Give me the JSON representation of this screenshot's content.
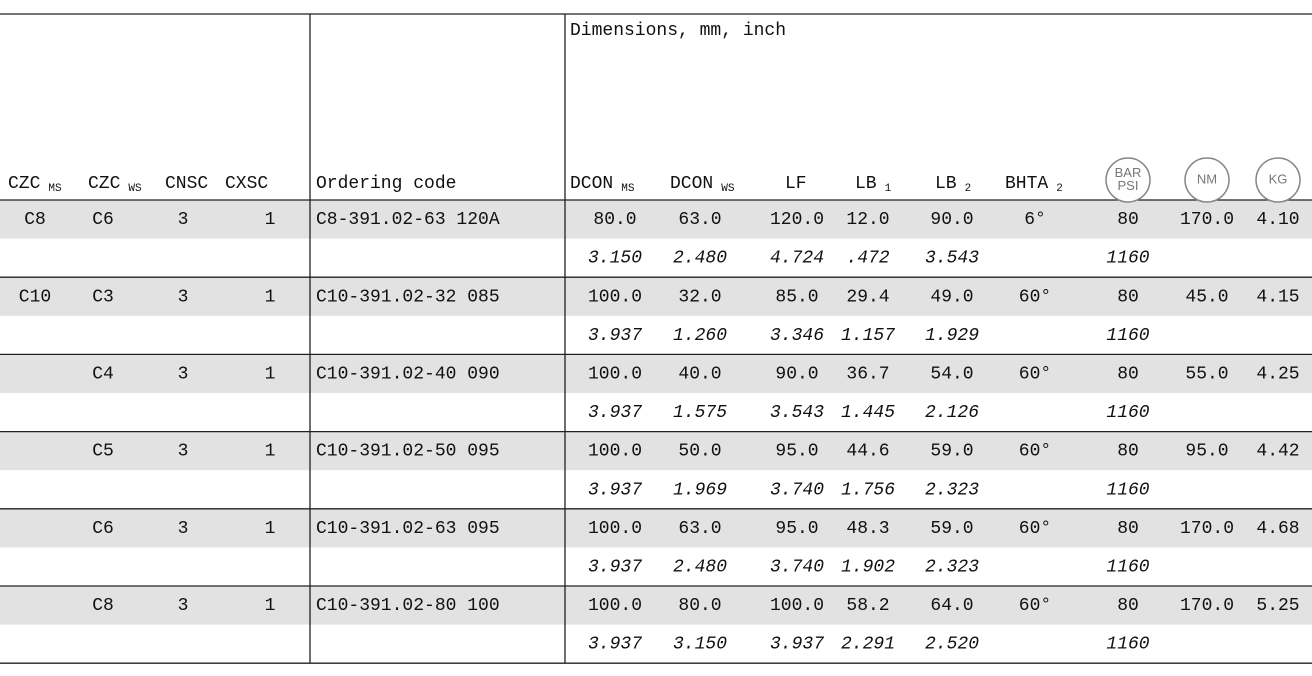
{
  "header": {
    "title": "Dimensions, mm, inch",
    "columns": [
      {
        "label": "CZC",
        "sub": "MS"
      },
      {
        "label": "CZC",
        "sub": "WS"
      },
      {
        "label": "CNSC"
      },
      {
        "label": "CXSC"
      },
      {
        "label": "Ordering code"
      },
      {
        "label": "DCON",
        "sub": "MS"
      },
      {
        "label": "DCON",
        "sub": "WS"
      },
      {
        "label": "LF"
      },
      {
        "label": "LB",
        "sub": "1"
      },
      {
        "label": "LB",
        "sub": "2"
      },
      {
        "label": "BHTA",
        "sub": "2"
      },
      {
        "icon": [
          "BAR",
          "PSI"
        ]
      },
      {
        "icon": [
          "NM"
        ]
      },
      {
        "icon": [
          "KG"
        ]
      }
    ]
  },
  "table": {
    "rows": [
      [
        "C8",
        "C6",
        "3",
        "1",
        "C8-391.02-63 120A",
        "80.0",
        "63.0",
        "120.0",
        "12.0",
        "90.0",
        "6°",
        "80",
        "170.0",
        "4.10"
      ],
      [
        null,
        null,
        null,
        null,
        null,
        "3.150",
        "2.480",
        "4.724",
        ".472",
        "3.543",
        null,
        "1160",
        null,
        null
      ],
      [
        "C10",
        "C3",
        "3",
        "1",
        "C10-391.02-32 085",
        "100.0",
        "32.0",
        "85.0",
        "29.4",
        "49.0",
        "60°",
        "80",
        "45.0",
        "4.15"
      ],
      [
        null,
        null,
        null,
        null,
        null,
        "3.937",
        "1.260",
        "3.346",
        "1.157",
        "1.929",
        null,
        "1160",
        null,
        null
      ],
      [
        null,
        "C4",
        "3",
        "1",
        "C10-391.02-40 090",
        "100.0",
        "40.0",
        "90.0",
        "36.7",
        "54.0",
        "60°",
        "80",
        "55.0",
        "4.25"
      ],
      [
        null,
        null,
        null,
        null,
        null,
        "3.937",
        "1.575",
        "3.543",
        "1.445",
        "2.126",
        null,
        "1160",
        null,
        null
      ],
      [
        null,
        "C5",
        "3",
        "1",
        "C10-391.02-50 095",
        "100.0",
        "50.0",
        "95.0",
        "44.6",
        "59.0",
        "60°",
        "80",
        "95.0",
        "4.42"
      ],
      [
        null,
        null,
        null,
        null,
        null,
        "3.937",
        "1.969",
        "3.740",
        "1.756",
        "2.323",
        null,
        "1160",
        null,
        null
      ],
      [
        null,
        "C6",
        "3",
        "1",
        "C10-391.02-63 095",
        "100.0",
        "63.0",
        "95.0",
        "48.3",
        "59.0",
        "60°",
        "80",
        "170.0",
        "4.68"
      ],
      [
        null,
        null,
        null,
        null,
        null,
        "3.937",
        "2.480",
        "3.740",
        "1.902",
        "2.323",
        null,
        "1160",
        null,
        null
      ],
      [
        null,
        "C8",
        "3",
        "1",
        "C10-391.02-80 100",
        "100.0",
        "80.0",
        "100.0",
        "58.2",
        "64.0",
        "60°",
        "80",
        "170.0",
        "5.25"
      ],
      [
        null,
        null,
        null,
        null,
        null,
        "3.937",
        "3.150",
        "3.937",
        "2.291",
        "2.520",
        null,
        "1160",
        null,
        null
      ]
    ]
  }
}
